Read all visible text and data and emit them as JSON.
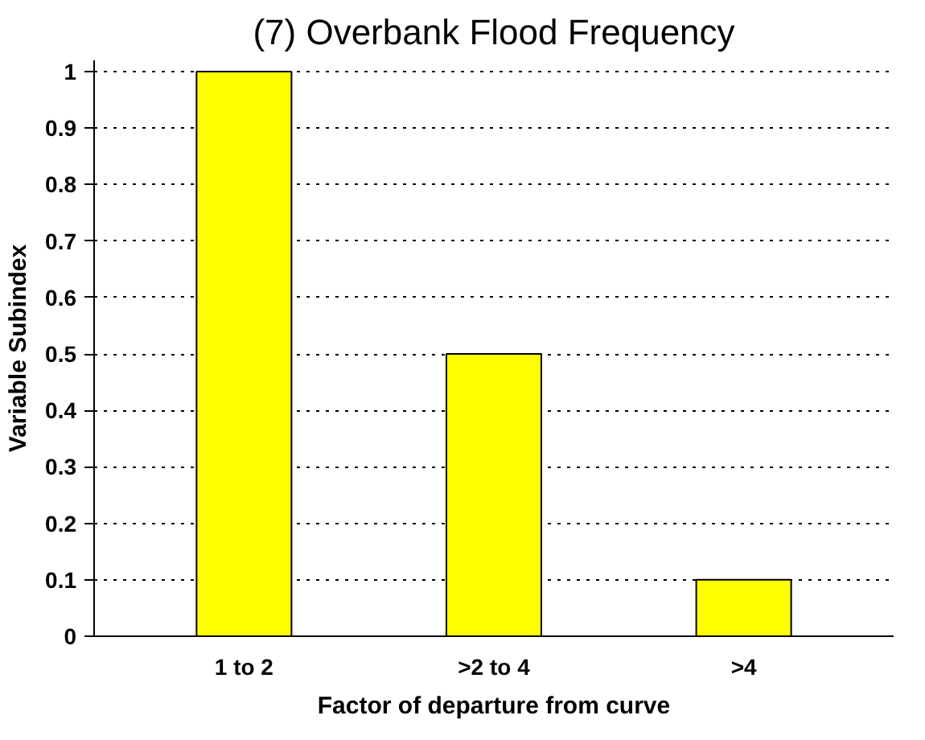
{
  "chart_data": {
    "type": "bar",
    "title": "(7) Overbank Flood Frequency",
    "xlabel": "Factor of departure from curve",
    "ylabel": "Variable Subindex",
    "categories": [
      "1 to 2",
      ">2 to 4",
      ">4"
    ],
    "values": [
      1,
      0.5,
      0.1
    ],
    "color": "#ffff00",
    "ylim": [
      0,
      1.02
    ],
    "yticks": [
      0,
      0.1,
      0.2,
      0.3,
      0.4,
      0.5,
      0.6,
      0.7,
      0.8,
      0.9,
      1
    ],
    "grid": "y"
  }
}
